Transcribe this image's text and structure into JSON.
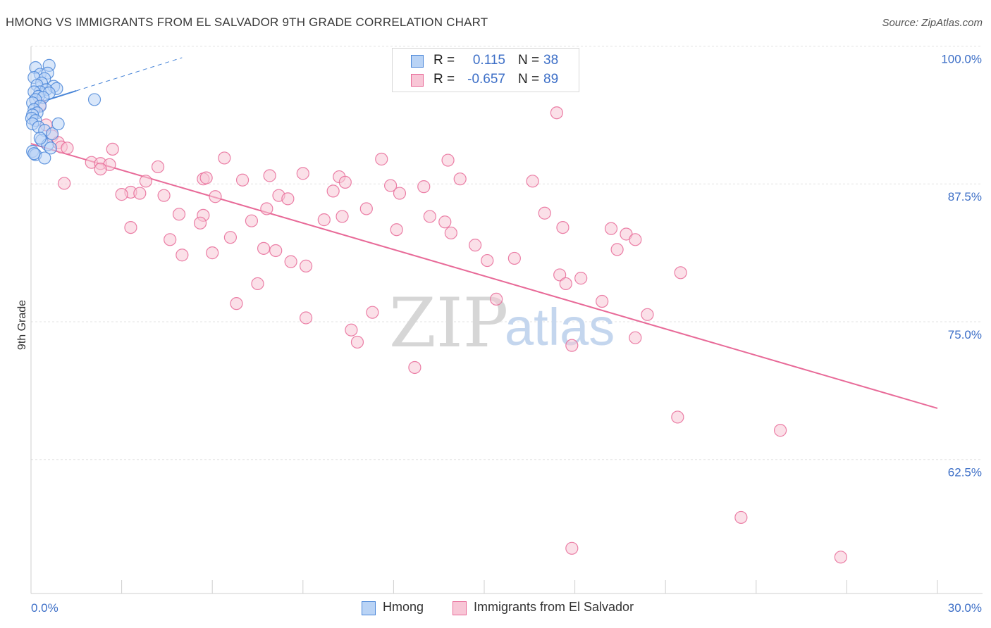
{
  "title": "HMONG VS IMMIGRANTS FROM EL SALVADOR 9TH GRADE CORRELATION CHART",
  "source": "Source: ZipAtlas.com",
  "watermark": {
    "zip": "ZIP",
    "atlas": "atlas"
  },
  "colors": {
    "blue": "#4a86d8",
    "blue_fill": "#b9d3f5",
    "pink": "#e86a98",
    "pink_fill": "#f8c6d6",
    "axis_text": "#3d6fc7"
  },
  "stats": [
    {
      "r_label": "R =",
      "r_value": "0.115",
      "n_label": "N =",
      "n_value": "38",
      "series": "hmong"
    },
    {
      "r_label": "R =",
      "r_value": "-0.657",
      "n_label": "N =",
      "n_value": "89",
      "series": "elsalvador"
    }
  ],
  "legend": [
    {
      "label": "Hmong",
      "series": "hmong"
    },
    {
      "label": "Immigrants from El Salvador",
      "series": "elsalvador"
    }
  ],
  "chart_data": {
    "type": "scatter",
    "title": "HMONG VS IMMIGRANTS FROM EL SALVADOR 9TH GRADE CORRELATION CHART",
    "xlabel": "",
    "ylabel": "9th Grade",
    "xlim": [
      0,
      30
    ],
    "ylim": [
      51.5,
      101.5
    ],
    "x_tick_labels": [
      "0.0%",
      "30.0%"
    ],
    "y_ticks": [
      62.5,
      75.0,
      87.5,
      100.0
    ],
    "y_tick_labels": [
      "62.5%",
      "75.0%",
      "87.5%",
      "100.0%"
    ],
    "grid": true,
    "series": [
      {
        "name": "Hmong",
        "key": "hmong",
        "points": [
          [
            0.15,
            99.2
          ],
          [
            0.6,
            99.4
          ],
          [
            0.3,
            98.6
          ],
          [
            0.55,
            98.7
          ],
          [
            0.45,
            98.2
          ],
          [
            0.1,
            98.3
          ],
          [
            0.35,
            97.8
          ],
          [
            0.75,
            97.5
          ],
          [
            0.2,
            97.6
          ],
          [
            0.5,
            97.2
          ],
          [
            0.85,
            97.3
          ],
          [
            0.3,
            97.0
          ],
          [
            0.6,
            96.9
          ],
          [
            0.1,
            97.0
          ],
          [
            0.25,
            96.6
          ],
          [
            0.4,
            96.5
          ],
          [
            0.15,
            96.3
          ],
          [
            2.1,
            96.3
          ],
          [
            0.05,
            96.0
          ],
          [
            0.3,
            95.7
          ],
          [
            0.1,
            95.4
          ],
          [
            0.2,
            95.1
          ],
          [
            0.05,
            94.9
          ],
          [
            0.02,
            94.6
          ],
          [
            0.15,
            94.4
          ],
          [
            0.05,
            94.1
          ],
          [
            0.25,
            93.8
          ],
          [
            0.45,
            93.5
          ],
          [
            0.7,
            93.2
          ],
          [
            0.9,
            94.1
          ],
          [
            0.35,
            92.6
          ],
          [
            0.55,
            92.2
          ],
          [
            0.65,
            91.9
          ],
          [
            0.05,
            91.6
          ],
          [
            0.15,
            91.3
          ],
          [
            0.45,
            91.0
          ],
          [
            0.1,
            91.4
          ],
          [
            0.3,
            92.8
          ]
        ],
        "trend": {
          "x": [
            0.0,
            1.5
          ],
          "y": [
            95.8,
            97.1
          ],
          "dashed_extension": {
            "x": [
              1.5,
              5.0
            ],
            "y": [
              97.1,
              100.1
            ]
          }
        }
      },
      {
        "name": "Immigrants from El Salvador",
        "key": "elsalvador",
        "points": [
          [
            0.3,
            95.8
          ],
          [
            0.5,
            94.0
          ],
          [
            0.7,
            93.0
          ],
          [
            0.9,
            92.4
          ],
          [
            1.0,
            92.0
          ],
          [
            1.2,
            91.9
          ],
          [
            2.7,
            91.8
          ],
          [
            6.4,
            91.0
          ],
          [
            11.6,
            90.9
          ],
          [
            13.8,
            90.8
          ],
          [
            2.0,
            90.6
          ],
          [
            2.3,
            90.5
          ],
          [
            2.6,
            90.4
          ],
          [
            4.2,
            90.2
          ],
          [
            2.3,
            90.0
          ],
          [
            9.0,
            89.6
          ],
          [
            10.2,
            89.3
          ],
          [
            5.7,
            89.1
          ],
          [
            3.8,
            88.9
          ],
          [
            7.0,
            89.0
          ],
          [
            14.2,
            89.1
          ],
          [
            10.4,
            88.8
          ],
          [
            16.6,
            88.9
          ],
          [
            11.9,
            88.5
          ],
          [
            13.0,
            88.4
          ],
          [
            10.0,
            88.0
          ],
          [
            12.2,
            87.8
          ],
          [
            3.3,
            87.9
          ],
          [
            3.6,
            87.8
          ],
          [
            3.0,
            87.7
          ],
          [
            4.4,
            87.6
          ],
          [
            6.1,
            87.5
          ],
          [
            8.2,
            87.6
          ],
          [
            8.5,
            87.3
          ],
          [
            11.1,
            86.4
          ],
          [
            7.8,
            86.4
          ],
          [
            17.0,
            86.0
          ],
          [
            4.9,
            85.9
          ],
          [
            5.7,
            85.8
          ],
          [
            13.2,
            85.7
          ],
          [
            10.3,
            85.7
          ],
          [
            9.7,
            85.4
          ],
          [
            7.3,
            85.3
          ],
          [
            13.7,
            85.2
          ],
          [
            5.6,
            85.1
          ],
          [
            3.3,
            84.7
          ],
          [
            17.6,
            84.7
          ],
          [
            12.1,
            84.5
          ],
          [
            19.2,
            84.6
          ],
          [
            13.9,
            84.2
          ],
          [
            19.7,
            84.1
          ],
          [
            6.6,
            83.8
          ],
          [
            4.6,
            83.6
          ],
          [
            20.0,
            83.6
          ],
          [
            14.7,
            83.1
          ],
          [
            7.7,
            82.8
          ],
          [
            8.1,
            82.6
          ],
          [
            5.0,
            82.2
          ],
          [
            6.0,
            82.4
          ],
          [
            19.4,
            82.7
          ],
          [
            8.6,
            81.6
          ],
          [
            15.1,
            81.7
          ],
          [
            16.0,
            81.9
          ],
          [
            9.1,
            81.2
          ],
          [
            17.5,
            80.4
          ],
          [
            18.2,
            80.1
          ],
          [
            21.5,
            80.6
          ],
          [
            7.5,
            79.6
          ],
          [
            17.7,
            79.6
          ],
          [
            15.4,
            78.2
          ],
          [
            6.8,
            77.8
          ],
          [
            18.9,
            78.0
          ],
          [
            11.3,
            77.0
          ],
          [
            20.4,
            76.8
          ],
          [
            9.1,
            76.5
          ],
          [
            10.6,
            75.4
          ],
          [
            20.0,
            74.7
          ],
          [
            10.8,
            74.3
          ],
          [
            17.9,
            74.0
          ],
          [
            12.7,
            72.0
          ],
          [
            17.4,
            95.1
          ],
          [
            21.4,
            67.5
          ],
          [
            24.8,
            66.3
          ],
          [
            23.5,
            58.4
          ],
          [
            26.8,
            54.8
          ],
          [
            17.9,
            55.6
          ],
          [
            5.8,
            89.2
          ],
          [
            7.9,
            89.4
          ],
          [
            1.1,
            88.7
          ]
        ],
        "trend": {
          "x": [
            0.0,
            30.0
          ],
          "y": [
            92.3,
            68.3
          ]
        }
      }
    ]
  }
}
